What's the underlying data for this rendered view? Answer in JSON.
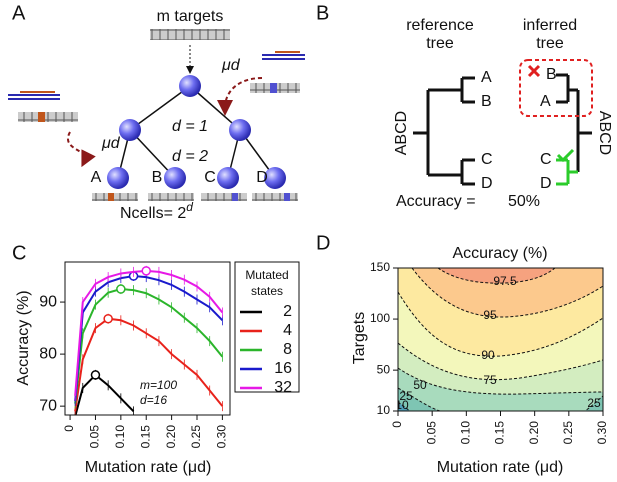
{
  "panel_a": {
    "label": "A",
    "targets": "m targets",
    "rate": "μd",
    "depth1": "d = 1",
    "depth2": "d = 2",
    "leaves": [
      "A",
      "B",
      "C",
      "D"
    ],
    "cells": "Ncells= 2",
    "cells_exp": "d"
  },
  "panel_b": {
    "label": "B",
    "reference": [
      "reference",
      "tree"
    ],
    "inferred": [
      "inferred",
      "tree"
    ],
    "root": "ABCD",
    "leaves": [
      "A",
      "B",
      "C",
      "D"
    ],
    "accuracy": "Accuracy =",
    "accuracy_value": "50%"
  },
  "chart_data": [
    {
      "type": "line",
      "label": "C",
      "y_label": "Accuracy (%)",
      "x_label": "Mutation rate (μd)",
      "legend_title": [
        "Mutated",
        "states"
      ],
      "annotations": [
        "m=100",
        "d=16"
      ],
      "x": [
        0.01,
        0.025,
        0.05,
        0.075,
        0.1,
        0.125,
        0.15,
        0.175,
        0.2,
        0.225,
        0.25,
        0.275,
        0.3
      ],
      "series": [
        {
          "name": "2",
          "color": "#000000",
          "values": [
            68,
            73.5,
            76,
            74,
            71.5,
            69,
            null,
            null,
            null,
            null,
            null,
            null,
            null
          ]
        },
        {
          "name": "4",
          "color": "#e8221b",
          "values": [
            69,
            79,
            85,
            86.8,
            86.5,
            85.5,
            84,
            82.5,
            80,
            78,
            76,
            73,
            70
          ]
        },
        {
          "name": "8",
          "color": "#2bb52b",
          "values": [
            70.5,
            84,
            89.5,
            91.8,
            92.5,
            92.3,
            91.7,
            90.5,
            89,
            87,
            85,
            82.5,
            79.5
          ]
        },
        {
          "name": "16",
          "color": "#1a1acc",
          "values": [
            71,
            88,
            92,
            93.8,
            94.6,
            95,
            94.8,
            94.2,
            93.3,
            92,
            90.5,
            89,
            86.5
          ]
        },
        {
          "name": "32",
          "color": "#e619e6",
          "values": [
            72,
            90,
            93.5,
            94.8,
            95.5,
            95.8,
            96,
            95.8,
            95.2,
            94.3,
            93,
            91,
            88
          ]
        }
      ],
      "xlim": [
        -0.01,
        0.315
      ],
      "ylim": [
        68.3,
        97.7
      ],
      "xticks": [
        0,
        0.05,
        {
          "value": 0.1,
          "label": "0.10"
        },
        0.15,
        {
          "value": 0.2,
          "label": "0.20"
        },
        0.25,
        {
          "value": 0.3,
          "label": "0.30"
        }
      ],
      "yticks": [
        70,
        80,
        90
      ]
    },
    {
      "type": "contour",
      "label": "D",
      "title": "Accuracy (%)",
      "y_label": "Targets",
      "x_label": "Mutation rate (μd)",
      "levels": [
        10,
        25,
        50,
        75,
        90,
        95,
        97.5
      ],
      "colors": [
        "#4f9fb8",
        "#7ec5b3",
        "#a8dbbd",
        "#d3edc0",
        "#f3f7bb",
        "#fde9a0",
        "#fcc98d",
        "#f6a27f"
      ],
      "xlim": [
        0,
        0.3
      ],
      "ylim": [
        10,
        150
      ],
      "xticks": [
        0,
        0.05,
        {
          "value": 0.1,
          "label": "0.10"
        },
        0.15,
        {
          "value": 0.2,
          "label": "0.20"
        },
        0.25,
        {
          "value": 0.3,
          "label": "0.30"
        }
      ],
      "yticks": [
        10,
        50,
        100,
        150
      ]
    }
  ]
}
